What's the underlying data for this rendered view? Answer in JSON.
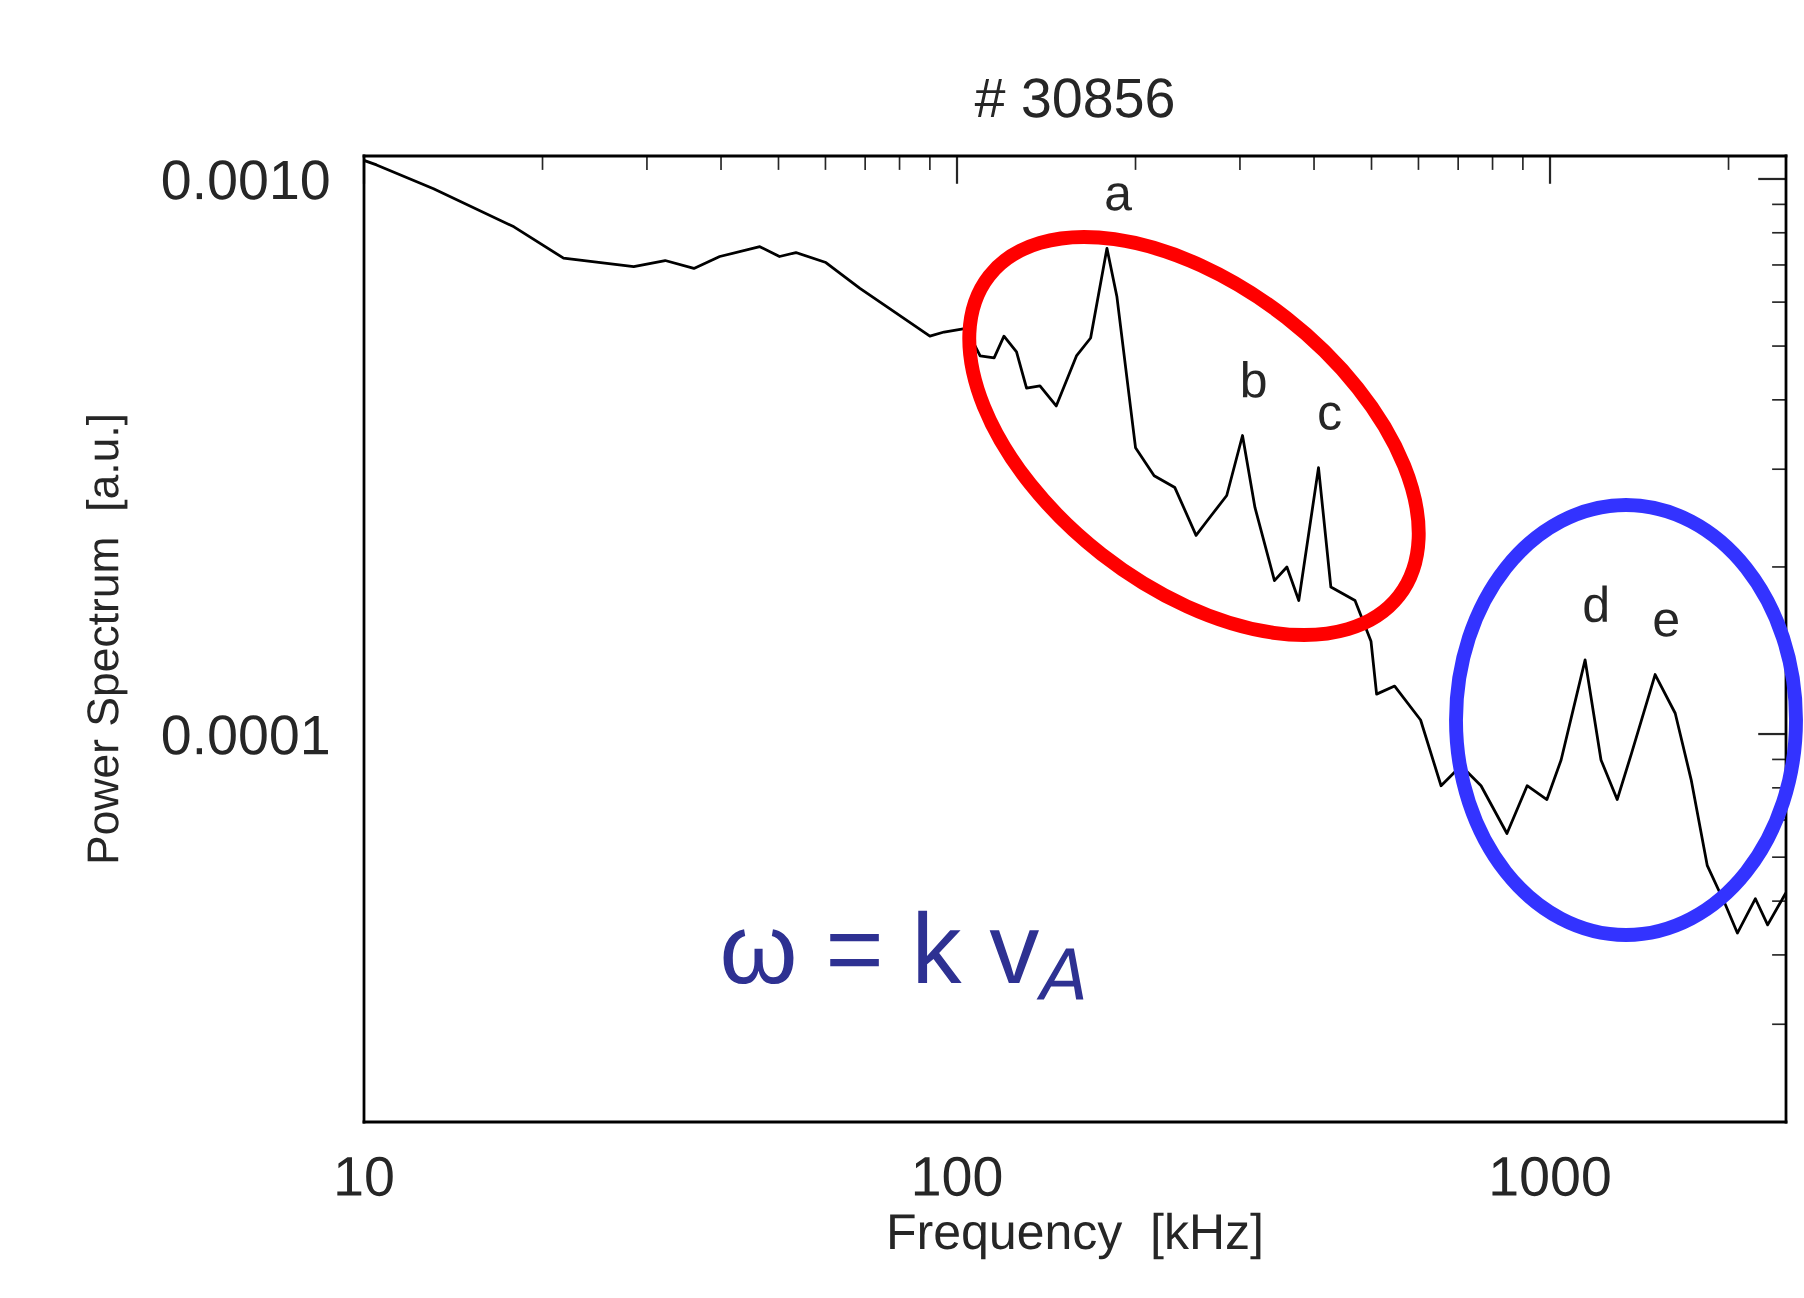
{
  "chart_data": {
    "type": "line",
    "title": "# 30856",
    "xlabel": "Frequency  [kHz]",
    "ylabel": "Power Spectrum  [a.u.]",
    "log": "xy",
    "grid": false,
    "legend": false,
    "marker": "none",
    "line_style": "solid",
    "xlim": [
      10,
      2500
    ],
    "xticks": [
      10,
      100,
      1000
    ],
    "ylim": [
      2e-05,
      0.0011
    ],
    "yticks": [
      {
        "value": 0.001,
        "label": "0.0010"
      },
      {
        "value": 0.0001,
        "label": "0.0001"
      }
    ],
    "x": [
      10,
      10.5,
      13.1,
      17.9,
      21.7,
      28.5,
      32.2,
      36.0,
      39.8,
      46.5,
      50.2,
      53.5,
      60.1,
      68.6,
      75.9,
      90,
      95.1,
      103.6,
      109.4,
      115.5,
      120,
      126,
      131,
      138,
      147,
      159,
      168,
      179,
      186,
      200,
      215,
      233,
      253,
      264,
      285,
      303,
      318,
      343,
      360,
      377,
      407,
      427,
      469,
      499,
      510,
      547,
      605,
      655,
      708,
      765,
      846,
      915,
      988,
      1044,
      1146,
      1219,
      1298,
      1371,
      1504,
      1626,
      1730,
      1841,
      1977,
      2070,
      2220,
      2328,
      2495
    ],
    "series": [
      {
        "color": "#000000",
        "values": [
          0.00108,
          0.00106,
          0.00096,
          0.00082,
          0.00072,
          0.000695,
          0.000713,
          0.00069,
          0.000725,
          0.000755,
          0.000725,
          0.000737,
          0.000707,
          0.000635,
          0.00059,
          0.000521,
          0.00053,
          0.000538,
          0.00048,
          0.000476,
          0.000521,
          0.000488,
          0.00042,
          0.000424,
          0.00039,
          0.00048,
          0.000517,
          0.00075,
          0.000615,
          0.000328,
          0.000292,
          0.000278,
          0.000228,
          0.000242,
          0.000269,
          0.000345,
          0.000256,
          0.000189,
          0.0002,
          0.000174,
          0.000302,
          0.000184,
          0.000174,
          0.000147,
          0.000118,
          0.000122,
          0.000106,
          8.07e-05,
          8.77e-05,
          8.07e-05,
          6.62e-05,
          8.07e-05,
          7.62e-05,
          8.98e-05,
          0.000136,
          8.98e-05,
          7.62e-05,
          9.2e-05,
          0.000128,
          0.000109,
          8.27e-05,
          5.8e-05,
          4.92e-05,
          4.38e-05,
          5.05e-05,
          4.53e-05,
          5.16e-05
        ]
      }
    ],
    "annotations": [
      {
        "text": "a",
        "x": 179,
        "y": 0.00075
      },
      {
        "text": "b",
        "x": 303,
        "y": 0.000345
      },
      {
        "text": "c",
        "x": 407,
        "y": 0.000302
      },
      {
        "text": "d",
        "x": 1146,
        "y": 0.000136
      },
      {
        "text": "e",
        "x": 1504,
        "y": 0.000128
      },
      "ω = k v$_{A}$"
    ]
  }
}
